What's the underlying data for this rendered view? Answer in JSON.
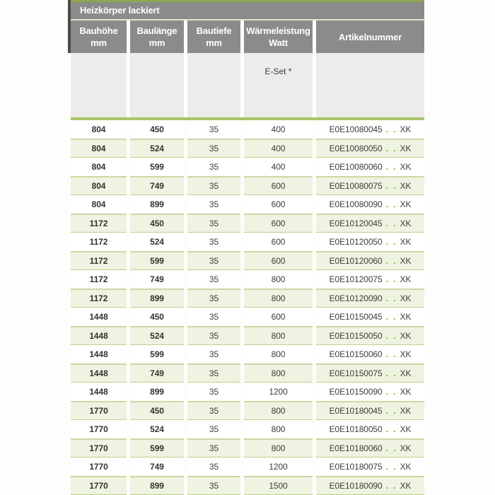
{
  "colors": {
    "accent_green": "#8ca654",
    "separator_green": "#a9c566",
    "hairline_green": "#c8d79e",
    "row_alt_green": "#eff3e1",
    "header_gray": "#8b8b89",
    "subheader_gray": "#edeceb",
    "dot_green": "#76b22d",
    "text_dark": "#3c3c3a",
    "header_text": "#ffffff"
  },
  "table": {
    "title": "Heizkörper lackiert",
    "columns": [
      {
        "line1": "Bauhöhe",
        "line2": "mm"
      },
      {
        "line1": "Baulänge",
        "line2": "mm"
      },
      {
        "line1": "Bautiefe",
        "line2": "mm"
      },
      {
        "line1": "Wärmeleistung",
        "line2": "Watt"
      },
      {
        "line1": "Artikelnummer",
        "line2": ""
      }
    ],
    "subheader": {
      "eset_label": "E-Set *"
    },
    "artikel_dots": ". .",
    "artikel_suffix": "XK",
    "rows": [
      {
        "bauhoehe": "804",
        "baulaenge": "450",
        "bautiefe": "35",
        "watt": "400",
        "artikel_code": "E0E10080045"
      },
      {
        "bauhoehe": "804",
        "baulaenge": "524",
        "bautiefe": "35",
        "watt": "400",
        "artikel_code": "E0E10080050"
      },
      {
        "bauhoehe": "804",
        "baulaenge": "599",
        "bautiefe": "35",
        "watt": "400",
        "artikel_code": "E0E10080060"
      },
      {
        "bauhoehe": "804",
        "baulaenge": "749",
        "bautiefe": "35",
        "watt": "600",
        "artikel_code": "E0E10080075"
      },
      {
        "bauhoehe": "804",
        "baulaenge": "899",
        "bautiefe": "35",
        "watt": "600",
        "artikel_code": "E0E10080090"
      },
      {
        "bauhoehe": "1172",
        "baulaenge": "450",
        "bautiefe": "35",
        "watt": "600",
        "artikel_code": "E0E10120045"
      },
      {
        "bauhoehe": "1172",
        "baulaenge": "524",
        "bautiefe": "35",
        "watt": "600",
        "artikel_code": "E0E10120050"
      },
      {
        "bauhoehe": "1172",
        "baulaenge": "599",
        "bautiefe": "35",
        "watt": "600",
        "artikel_code": "E0E10120060"
      },
      {
        "bauhoehe": "1172",
        "baulaenge": "749",
        "bautiefe": "35",
        "watt": "800",
        "artikel_code": "E0E10120075"
      },
      {
        "bauhoehe": "1172",
        "baulaenge": "899",
        "bautiefe": "35",
        "watt": "800",
        "artikel_code": "E0E10120090"
      },
      {
        "bauhoehe": "1448",
        "baulaenge": "450",
        "bautiefe": "35",
        "watt": "600",
        "artikel_code": "E0E10150045"
      },
      {
        "bauhoehe": "1448",
        "baulaenge": "524",
        "bautiefe": "35",
        "watt": "800",
        "artikel_code": "E0E10150050"
      },
      {
        "bauhoehe": "1448",
        "baulaenge": "599",
        "bautiefe": "35",
        "watt": "800",
        "artikel_code": "E0E10150060"
      },
      {
        "bauhoehe": "1448",
        "baulaenge": "749",
        "bautiefe": "35",
        "watt": "800",
        "artikel_code": "E0E10150075"
      },
      {
        "bauhoehe": "1448",
        "baulaenge": "899",
        "bautiefe": "35",
        "watt": "1200",
        "artikel_code": "E0E10150090"
      },
      {
        "bauhoehe": "1770",
        "baulaenge": "450",
        "bautiefe": "35",
        "watt": "800",
        "artikel_code": "E0E10180045"
      },
      {
        "bauhoehe": "1770",
        "baulaenge": "524",
        "bautiefe": "35",
        "watt": "800",
        "artikel_code": "E0E10180050"
      },
      {
        "bauhoehe": "1770",
        "baulaenge": "599",
        "bautiefe": "35",
        "watt": "800",
        "artikel_code": "E0E10180060"
      },
      {
        "bauhoehe": "1770",
        "baulaenge": "749",
        "bautiefe": "35",
        "watt": "1200",
        "artikel_code": "E0E10180075"
      },
      {
        "bauhoehe": "1770",
        "baulaenge": "899",
        "bautiefe": "35",
        "watt": "1500",
        "artikel_code": "E0E10180090"
      }
    ]
  }
}
